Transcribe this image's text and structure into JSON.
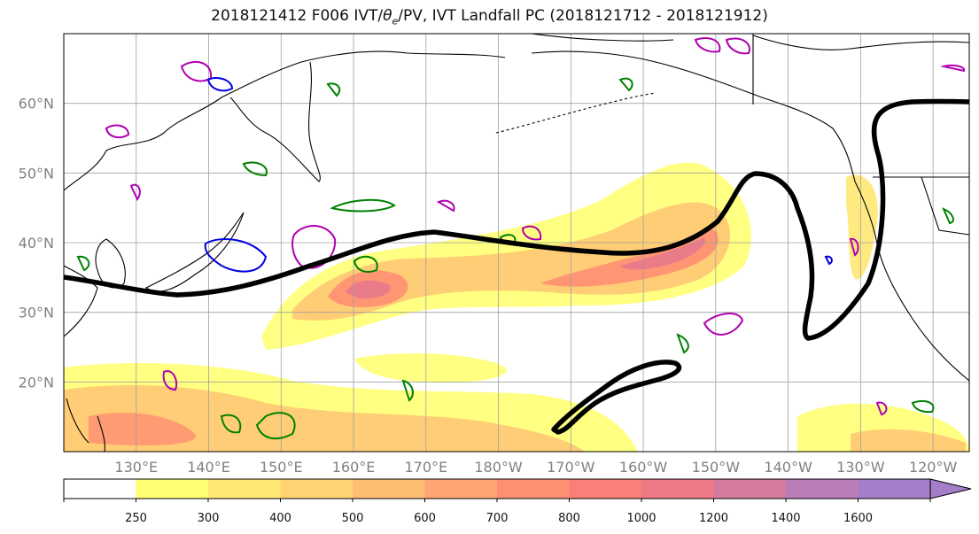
{
  "title": "2018121412 F006 IVT/θe/PV, IVT Landfall PC (2018121712 - 2018121912)",
  "title_parts": {
    "before": "2018121412 F006 IVT/",
    "theta": "θ",
    "sub": "e",
    "after": "/PV, IVT Landfall PC (2018121712 - 2018121912)"
  },
  "map": {
    "projection": "equirectangular",
    "lon_range": [
      120,
      245
    ],
    "lat_range": [
      10,
      70
    ],
    "grid": true,
    "lat_labels": [
      "20°N",
      "30°N",
      "40°N",
      "50°N",
      "60°N"
    ],
    "lon_labels": [
      "130°E",
      "140°E",
      "150°E",
      "160°E",
      "170°E",
      "180°W",
      "170°W",
      "160°W",
      "150°W",
      "140°W",
      "130°W",
      "120°W"
    ]
  },
  "colorbar": {
    "levels": [
      "250",
      "300",
      "400",
      "500",
      "600",
      "700",
      "800",
      "1000",
      "1200",
      "1400",
      "1600"
    ],
    "colors": [
      "#ffffff",
      "#ffff73",
      "#ffe873",
      "#ffd273",
      "#ffbc73",
      "#ffa573",
      "#ff8f73",
      "#f97f78",
      "#ef7886",
      "#d47a9e",
      "#b97db9",
      "#a47ec9"
    ],
    "extend": "max"
  },
  "colors": {
    "ivt_low": "#ffff73",
    "ivt_mid": "#ffc873",
    "ivt_high": "#ff8f73",
    "ivt_peak": "#e8788c",
    "pc_contour": "#000000",
    "theta_e_contour": "#008000",
    "pv_contour_magenta": "#b000b0",
    "pv_contour_blue": "#0000e0",
    "coastline": "#000000",
    "grid": "#a0a0a0"
  }
}
